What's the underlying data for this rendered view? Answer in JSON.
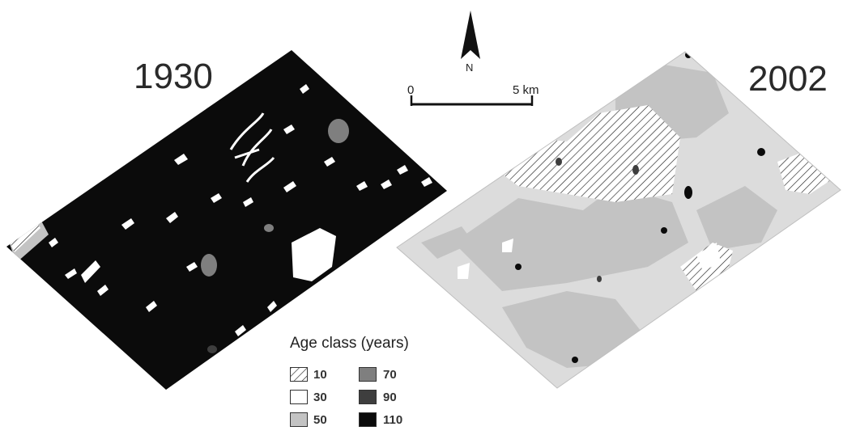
{
  "panels": [
    {
      "year": "1930"
    },
    {
      "year": "2002"
    }
  ],
  "north_arrow": {
    "label": "N",
    "icon": "north-arrow-icon"
  },
  "scale_bar": {
    "start_label": "0",
    "end_label": "5 km"
  },
  "legend": {
    "title": "Age class (years)",
    "classes": [
      {
        "label": "10",
        "pattern": "hatched",
        "color": "#ffffff"
      },
      {
        "label": "30",
        "pattern": "solid",
        "color": "#ffffff"
      },
      {
        "label": "50",
        "pattern": "solid",
        "color": "#c3c3c3"
      },
      {
        "label": "70",
        "pattern": "solid",
        "color": "#7f7f7f"
      },
      {
        "label": "90",
        "pattern": "solid",
        "color": "#3e3e3e"
      },
      {
        "label": "110",
        "pattern": "solid",
        "color": "#0b0b0b"
      }
    ]
  }
}
